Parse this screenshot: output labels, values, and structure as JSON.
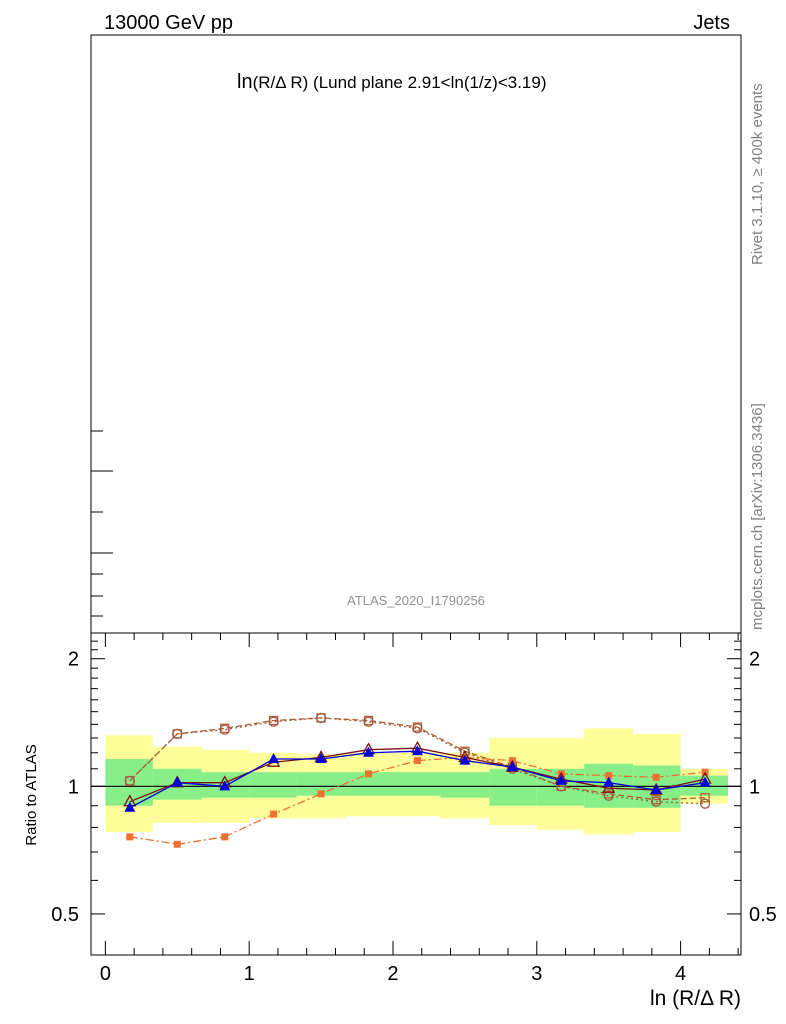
{
  "header": {
    "left": "13000 GeV pp",
    "right": "Jets"
  },
  "title_main": "ln",
  "title_sub": "(R/Δ R)",
  "title_rest": " (Lund plane 2.91<ln(1/z)<3.19)",
  "analysis_label": "ATLAS_2020_I1790256",
  "side_text_top": "Rivet 3.1.10, ≥ 400k events",
  "side_text_bottom": "mcplots.cern.ch [arXiv:1306.3436]",
  "chart_data": {
    "type": "line",
    "ratio_panel": {
      "ylabel": "Ratio to ATLAS",
      "xlabel": "ln (R/Δ R)",
      "xlim": [
        -0.1,
        4.42
      ],
      "ylim": [
        0.4,
        2.3
      ],
      "log_y": true,
      "x_ticks": [
        0,
        1,
        2,
        3,
        4
      ],
      "y_ticks": [
        0.5,
        1,
        2
      ],
      "reference_line": 1.0,
      "bin_edges": [
        0.0,
        0.33,
        0.67,
        1.0,
        1.33,
        1.67,
        2.0,
        2.33,
        2.67,
        3.0,
        3.33,
        3.67,
        4.0,
        4.33
      ],
      "band_yellow": [
        [
          0.78,
          1.32
        ],
        [
          0.82,
          1.24
        ],
        [
          0.82,
          1.22
        ],
        [
          0.84,
          1.2
        ],
        [
          0.84,
          1.19
        ],
        [
          0.85,
          1.2
        ],
        [
          0.85,
          1.2
        ],
        [
          0.84,
          1.2
        ],
        [
          0.81,
          1.3
        ],
        [
          0.79,
          1.3
        ],
        [
          0.77,
          1.37
        ],
        [
          0.78,
          1.33
        ],
        [
          0.91,
          1.1
        ]
      ],
      "band_green": [
        [
          0.9,
          1.16
        ],
        [
          0.93,
          1.1
        ],
        [
          0.94,
          1.08
        ],
        [
          0.94,
          1.08
        ],
        [
          0.95,
          1.08
        ],
        [
          0.95,
          1.08
        ],
        [
          0.95,
          1.08
        ],
        [
          0.94,
          1.08
        ],
        [
          0.9,
          1.1
        ],
        [
          0.9,
          1.1
        ],
        [
          0.89,
          1.13
        ],
        [
          0.89,
          1.12
        ],
        [
          0.95,
          1.06
        ]
      ],
      "x": [
        0.17,
        0.5,
        0.83,
        1.17,
        1.5,
        1.83,
        2.17,
        2.5,
        2.83,
        3.17,
        3.5,
        3.83,
        4.17
      ],
      "series": [
        {
          "color": "#b06030",
          "marker": "open-square",
          "dash": "6,3",
          "values": [
            1.03,
            1.33,
            1.37,
            1.43,
            1.45,
            1.43,
            1.38,
            1.21,
            1.11,
            1.0,
            0.96,
            0.93,
            0.94
          ]
        },
        {
          "color": "#a05a4a",
          "marker": "open-circle",
          "dash": "2,3",
          "values": [
            1.03,
            1.33,
            1.36,
            1.42,
            1.45,
            1.42,
            1.37,
            1.2,
            1.1,
            1.0,
            0.95,
            0.92,
            0.91
          ]
        },
        {
          "color": "#f07030",
          "marker": "filled-square",
          "dash": "8,3,2,3",
          "values": [
            0.76,
            0.73,
            0.76,
            0.86,
            0.96,
            1.07,
            1.15,
            1.17,
            1.15,
            1.07,
            1.06,
            1.05,
            1.08
          ]
        },
        {
          "color": "#7a1010",
          "marker": "open-triangle",
          "dash": "",
          "values": [
            0.92,
            1.02,
            1.02,
            1.14,
            1.17,
            1.22,
            1.23,
            1.17,
            1.11,
            1.04,
            0.99,
            0.98,
            1.04
          ]
        },
        {
          "color": "#0000dd",
          "marker": "filled-triangle",
          "dash": "",
          "values": [
            0.89,
            1.02,
            1.0,
            1.16,
            1.16,
            1.2,
            1.21,
            1.15,
            1.11,
            1.03,
            1.02,
            0.98,
            1.02
          ]
        }
      ]
    }
  }
}
